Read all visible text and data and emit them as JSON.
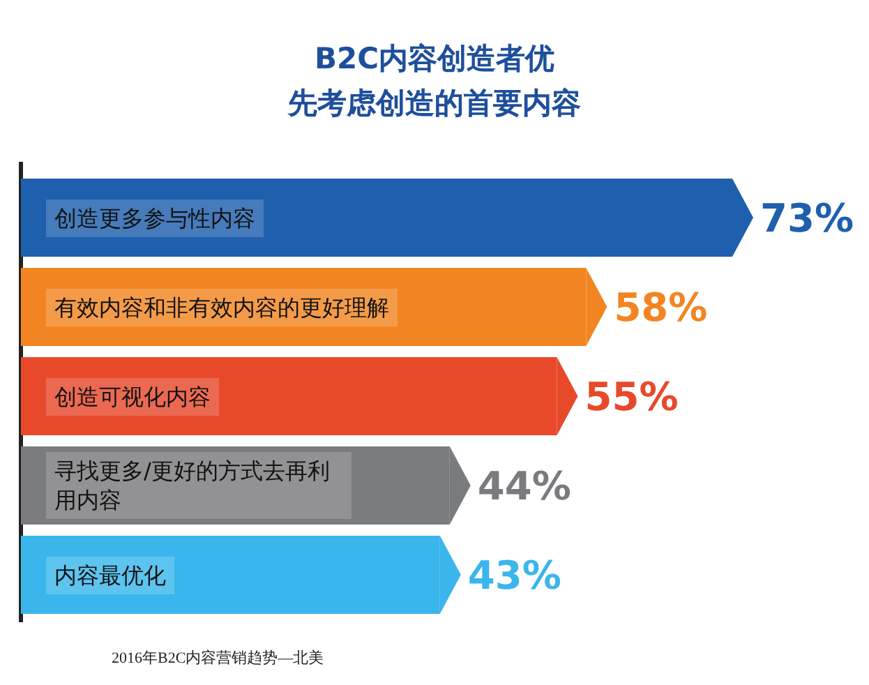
{
  "chart_data": {
    "type": "bar",
    "orientation": "horizontal",
    "title": "B2C内容创造者优",
    "subtitle": "先考虑创造的首要内容",
    "categories": [
      "创造更多参与性内容",
      "有效内容和非有效内容的更好理解",
      "创造可视化内容",
      "寻找更多/更好的方式去再利用内容",
      "内容最优化"
    ],
    "values": [
      73,
      58,
      55,
      44,
      43
    ],
    "colors": [
      "#1e5fae",
      "#f28522",
      "#e8492b",
      "#7a7b7e",
      "#3ab6ec"
    ],
    "value_labels": [
      "73%",
      "58%",
      "55%",
      "44%",
      "43%"
    ],
    "annotations": [
      "2016年B2C内容营销趋势—北美"
    ]
  }
}
